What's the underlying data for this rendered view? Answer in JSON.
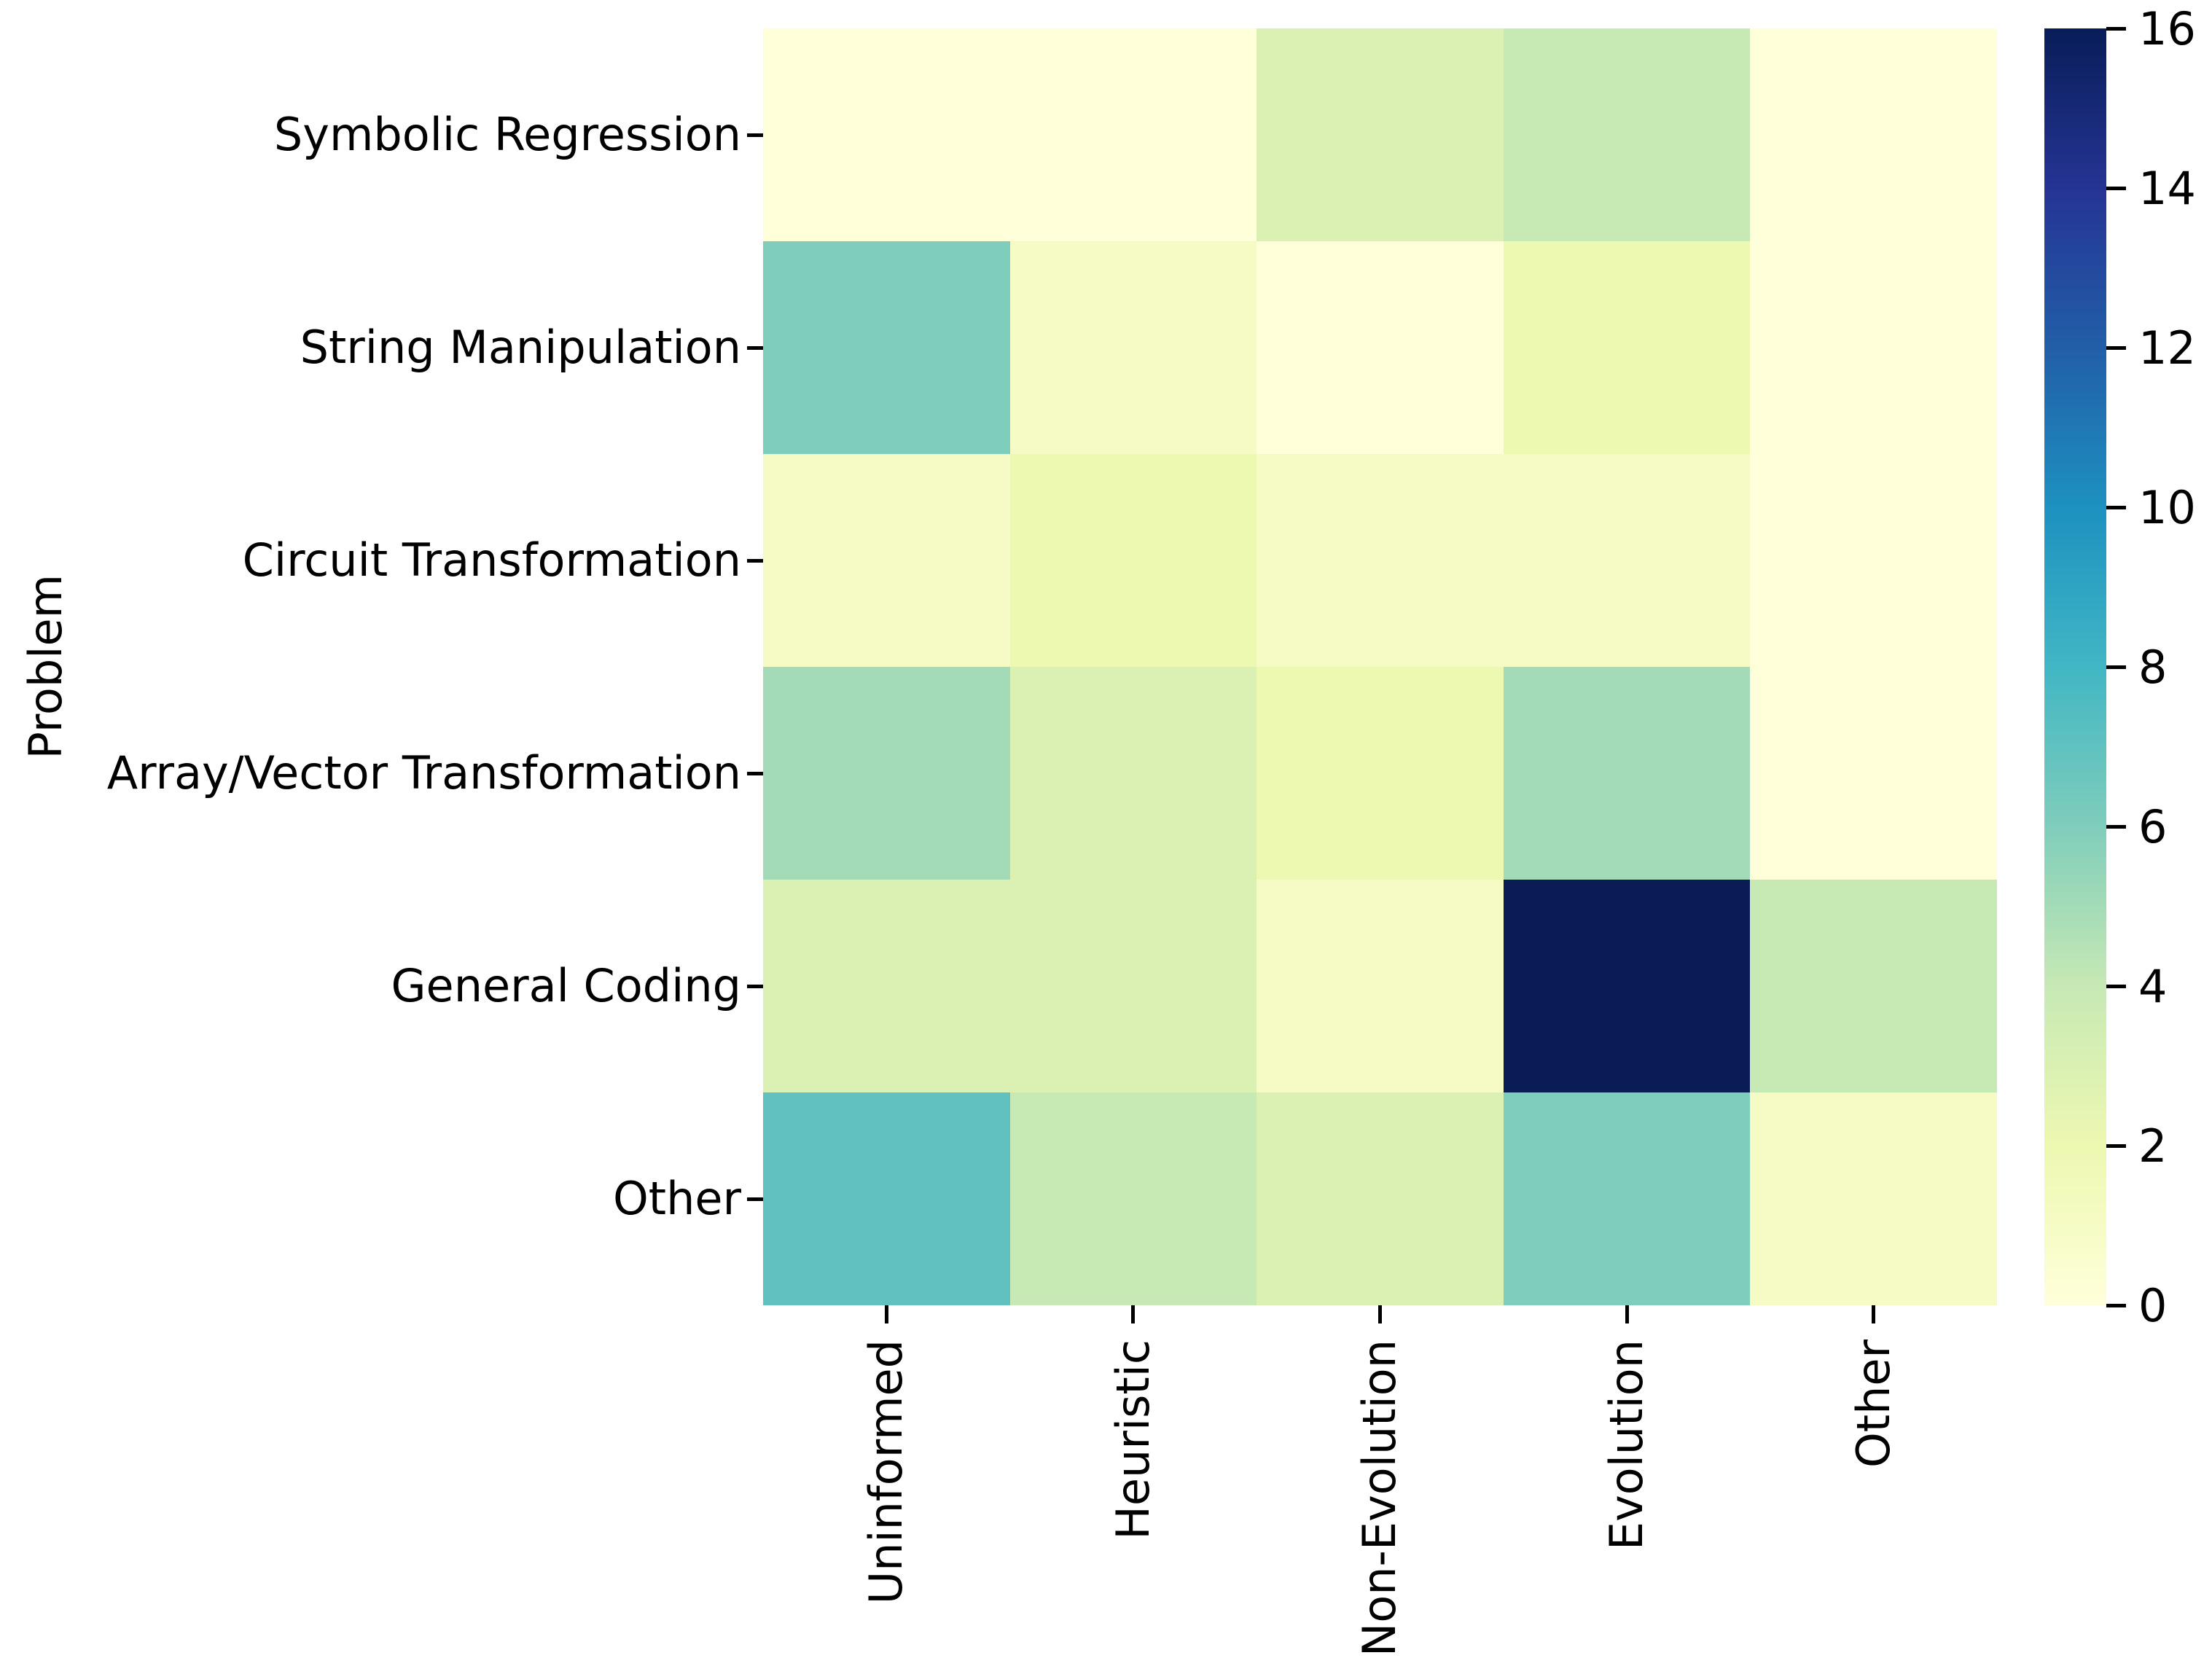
{
  "chart_data": {
    "type": "heatmap",
    "title": "",
    "xlabel": "",
    "ylabel": "Problem",
    "rows": [
      "Symbolic Regression",
      "String Manipulation",
      "Circuit Transformation",
      "Array/Vector Transformation",
      "General Coding",
      "Other"
    ],
    "columns": [
      "Uninformed",
      "Heuristic",
      "Non-Evolution",
      "Evolution",
      "Other"
    ],
    "matrix": [
      [
        0,
        0,
        3,
        4,
        0
      ],
      [
        6,
        1,
        0,
        2,
        0
      ],
      [
        1,
        2,
        1,
        1,
        0
      ],
      [
        5,
        3,
        2,
        5,
        0
      ],
      [
        3,
        3,
        1,
        16,
        4
      ],
      [
        7,
        4,
        3,
        6,
        1
      ]
    ],
    "vmin": 0,
    "vmax": 16,
    "colormap": "YlGnBu",
    "value_palette": {
      "0": "#ffffd9",
      "1": "#f6fbc5",
      "2": "#edf8b1",
      "3": "#daf1b3",
      "4": "#c7e9b4",
      "5": "#a3dbb8",
      "6": "#7fcdbb",
      "7": "#60c1c0",
      "16": "#0a1c56"
    },
    "legend_position": "right",
    "grid": false,
    "colorbar": {
      "ticks": [
        0,
        2,
        4,
        6,
        8,
        10,
        12,
        14,
        16
      ],
      "gradient_stops": [
        {
          "pos": 0.0,
          "color": "#ffffd9"
        },
        {
          "pos": 0.125,
          "color": "#edf8b1"
        },
        {
          "pos": 0.25,
          "color": "#c7e9b4"
        },
        {
          "pos": 0.375,
          "color": "#7fcdbb"
        },
        {
          "pos": 0.5,
          "color": "#41b6c4"
        },
        {
          "pos": 0.625,
          "color": "#1d91c0"
        },
        {
          "pos": 0.75,
          "color": "#225ea8"
        },
        {
          "pos": 0.875,
          "color": "#253494"
        },
        {
          "pos": 1.0,
          "color": "#081d58"
        }
      ]
    }
  }
}
